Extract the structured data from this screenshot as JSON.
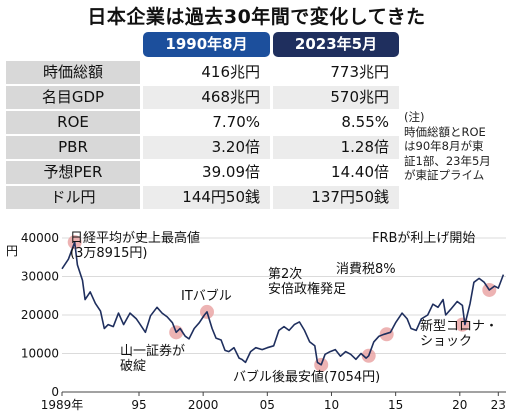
{
  "title": "日本企業は過去30年間で変化してきた",
  "table": {
    "columns": [
      "1990年8月",
      "2023年5月"
    ],
    "rows": [
      {
        "label": "時価総額",
        "v1": "416兆円",
        "v2": "773兆円"
      },
      {
        "label": "名目GDP",
        "v1": "468兆円",
        "v2": "570兆円"
      },
      {
        "label": "ROE",
        "v1": "7.70%",
        "v2": "8.55%"
      },
      {
        "label": "PBR",
        "v1": "3.20倍",
        "v2": "1.28倍"
      },
      {
        "label": "予想PER",
        "v1": "39.09倍",
        "v2": "14.40倍"
      },
      {
        "label": "ドル円",
        "v1": "144円50銭",
        "v2": "137円50銭"
      }
    ]
  },
  "note": [
    "(注)",
    "時価総額とROE",
    "は90年8月が東",
    "証1部、23年5月",
    "が東証プライム"
  ],
  "chart_data": {
    "type": "line",
    "y_unit": "円",
    "ylim": [
      0,
      40000
    ],
    "yticks": [
      0,
      10000,
      20000,
      30000,
      40000
    ],
    "ytick_labels": [
      "0",
      "10000",
      "20000",
      "30000",
      "40000"
    ],
    "xlim": [
      1989,
      2023.6
    ],
    "xticks": [
      {
        "x": 1989,
        "label": "1989年"
      },
      {
        "x": 1995,
        "label": "95"
      },
      {
        "x": 2000,
        "label": "2000"
      },
      {
        "x": 2005,
        "label": "05"
      },
      {
        "x": 2010,
        "label": "10"
      },
      {
        "x": 2015,
        "label": "15"
      },
      {
        "x": 2020,
        "label": "20"
      },
      {
        "x": 2023,
        "label": "23"
      }
    ],
    "grid": true,
    "line_color": "#1f2f5e",
    "highlight_color": "#e8a0a0",
    "series": [
      {
        "x": [
          1989.0,
          1989.5,
          1989.99,
          1990.2,
          1990.6,
          1990.8,
          1991.2,
          1991.6,
          1992.0,
          1992.3,
          1992.6,
          1993.0,
          1993.4,
          1993.8,
          1994.3,
          1994.8,
          1995.0,
          1995.5,
          1995.9,
          1996.4,
          1996.8,
          1997.2,
          1997.6,
          1997.9,
          1998.2,
          1998.6,
          1998.9,
          1999.3,
          1999.7,
          2000.1,
          2000.3,
          2000.7,
          2001.0,
          2001.4,
          2001.7,
          2002.0,
          2002.4,
          2002.8,
          2003.0,
          2003.3,
          2003.7,
          2004.1,
          2004.6,
          2005.0,
          2005.5,
          2005.9,
          2006.3,
          2006.7,
          2007.1,
          2007.5,
          2007.9,
          2008.3,
          2008.7,
          2008.9,
          2009.2,
          2009.5,
          2009.9,
          2010.3,
          2010.7,
          2011.1,
          2011.5,
          2011.9,
          2012.3,
          2012.7,
          2012.9,
          2013.3,
          2013.7,
          2014.1,
          2014.6,
          2015.0,
          2015.5,
          2015.9,
          2016.2,
          2016.6,
          2017.0,
          2017.5,
          2017.9,
          2018.3,
          2018.7,
          2018.9,
          2019.3,
          2019.8,
          2020.2,
          2020.4,
          2020.8,
          2021.1,
          2021.5,
          2021.9,
          2022.3,
          2022.7,
          2023.0,
          2023.4
        ],
        "y": [
          32000,
          34500,
          38915,
          33000,
          29000,
          24000,
          26000,
          23000,
          21000,
          16500,
          17500,
          17000,
          20500,
          17500,
          20500,
          19000,
          18000,
          15500,
          19800,
          22000,
          20500,
          19500,
          18000,
          15500,
          16500,
          14500,
          13800,
          16500,
          18000,
          20000,
          20800,
          16500,
          14000,
          13500,
          10800,
          10500,
          11500,
          8800,
          8500,
          7700,
          10500,
          11500,
          11000,
          11500,
          12000,
          16000,
          17000,
          16000,
          17500,
          18200,
          16000,
          13000,
          12000,
          7700,
          7054,
          9800,
          10500,
          11000,
          9300,
          10500,
          9800,
          8500,
          10000,
          8800,
          9400,
          13000,
          14500,
          15000,
          15500,
          18000,
          20500,
          19000,
          16500,
          16000,
          19000,
          20000,
          22800,
          22000,
          24000,
          20000,
          21500,
          23500,
          22500,
          17500,
          23000,
          28500,
          29500,
          28500,
          26500,
          27500,
          27000,
          30500
        ]
      }
    ],
    "annotations": [
      {
        "lines": [
          "日経平均が史上最高値",
          "(3万8915円)"
        ],
        "x": 1989.99,
        "y": 38915
      },
      {
        "lines": [
          "ITバブル"
        ],
        "x": 2000.3,
        "y": 20800
      },
      {
        "lines": [
          "山一証券が",
          "破綻"
        ],
        "x": 1997.9,
        "y": 15500
      },
      {
        "lines": [
          "第2次",
          "安倍政権発足"
        ],
        "x": 2012.9,
        "y": 9400
      },
      {
        "lines": [
          "消費税8%"
        ],
        "x": 2014.3,
        "y": 15000
      },
      {
        "lines": [
          "FRBが利上げ開始"
        ],
        "x": 2022.3,
        "y": 26500
      },
      {
        "lines": [
          "新型コロナ・",
          "ショック"
        ],
        "x": 2020.2,
        "y": 17500
      },
      {
        "lines": [
          "バブル後最安値(7054円)"
        ],
        "x": 2009.2,
        "y": 7054
      }
    ]
  }
}
